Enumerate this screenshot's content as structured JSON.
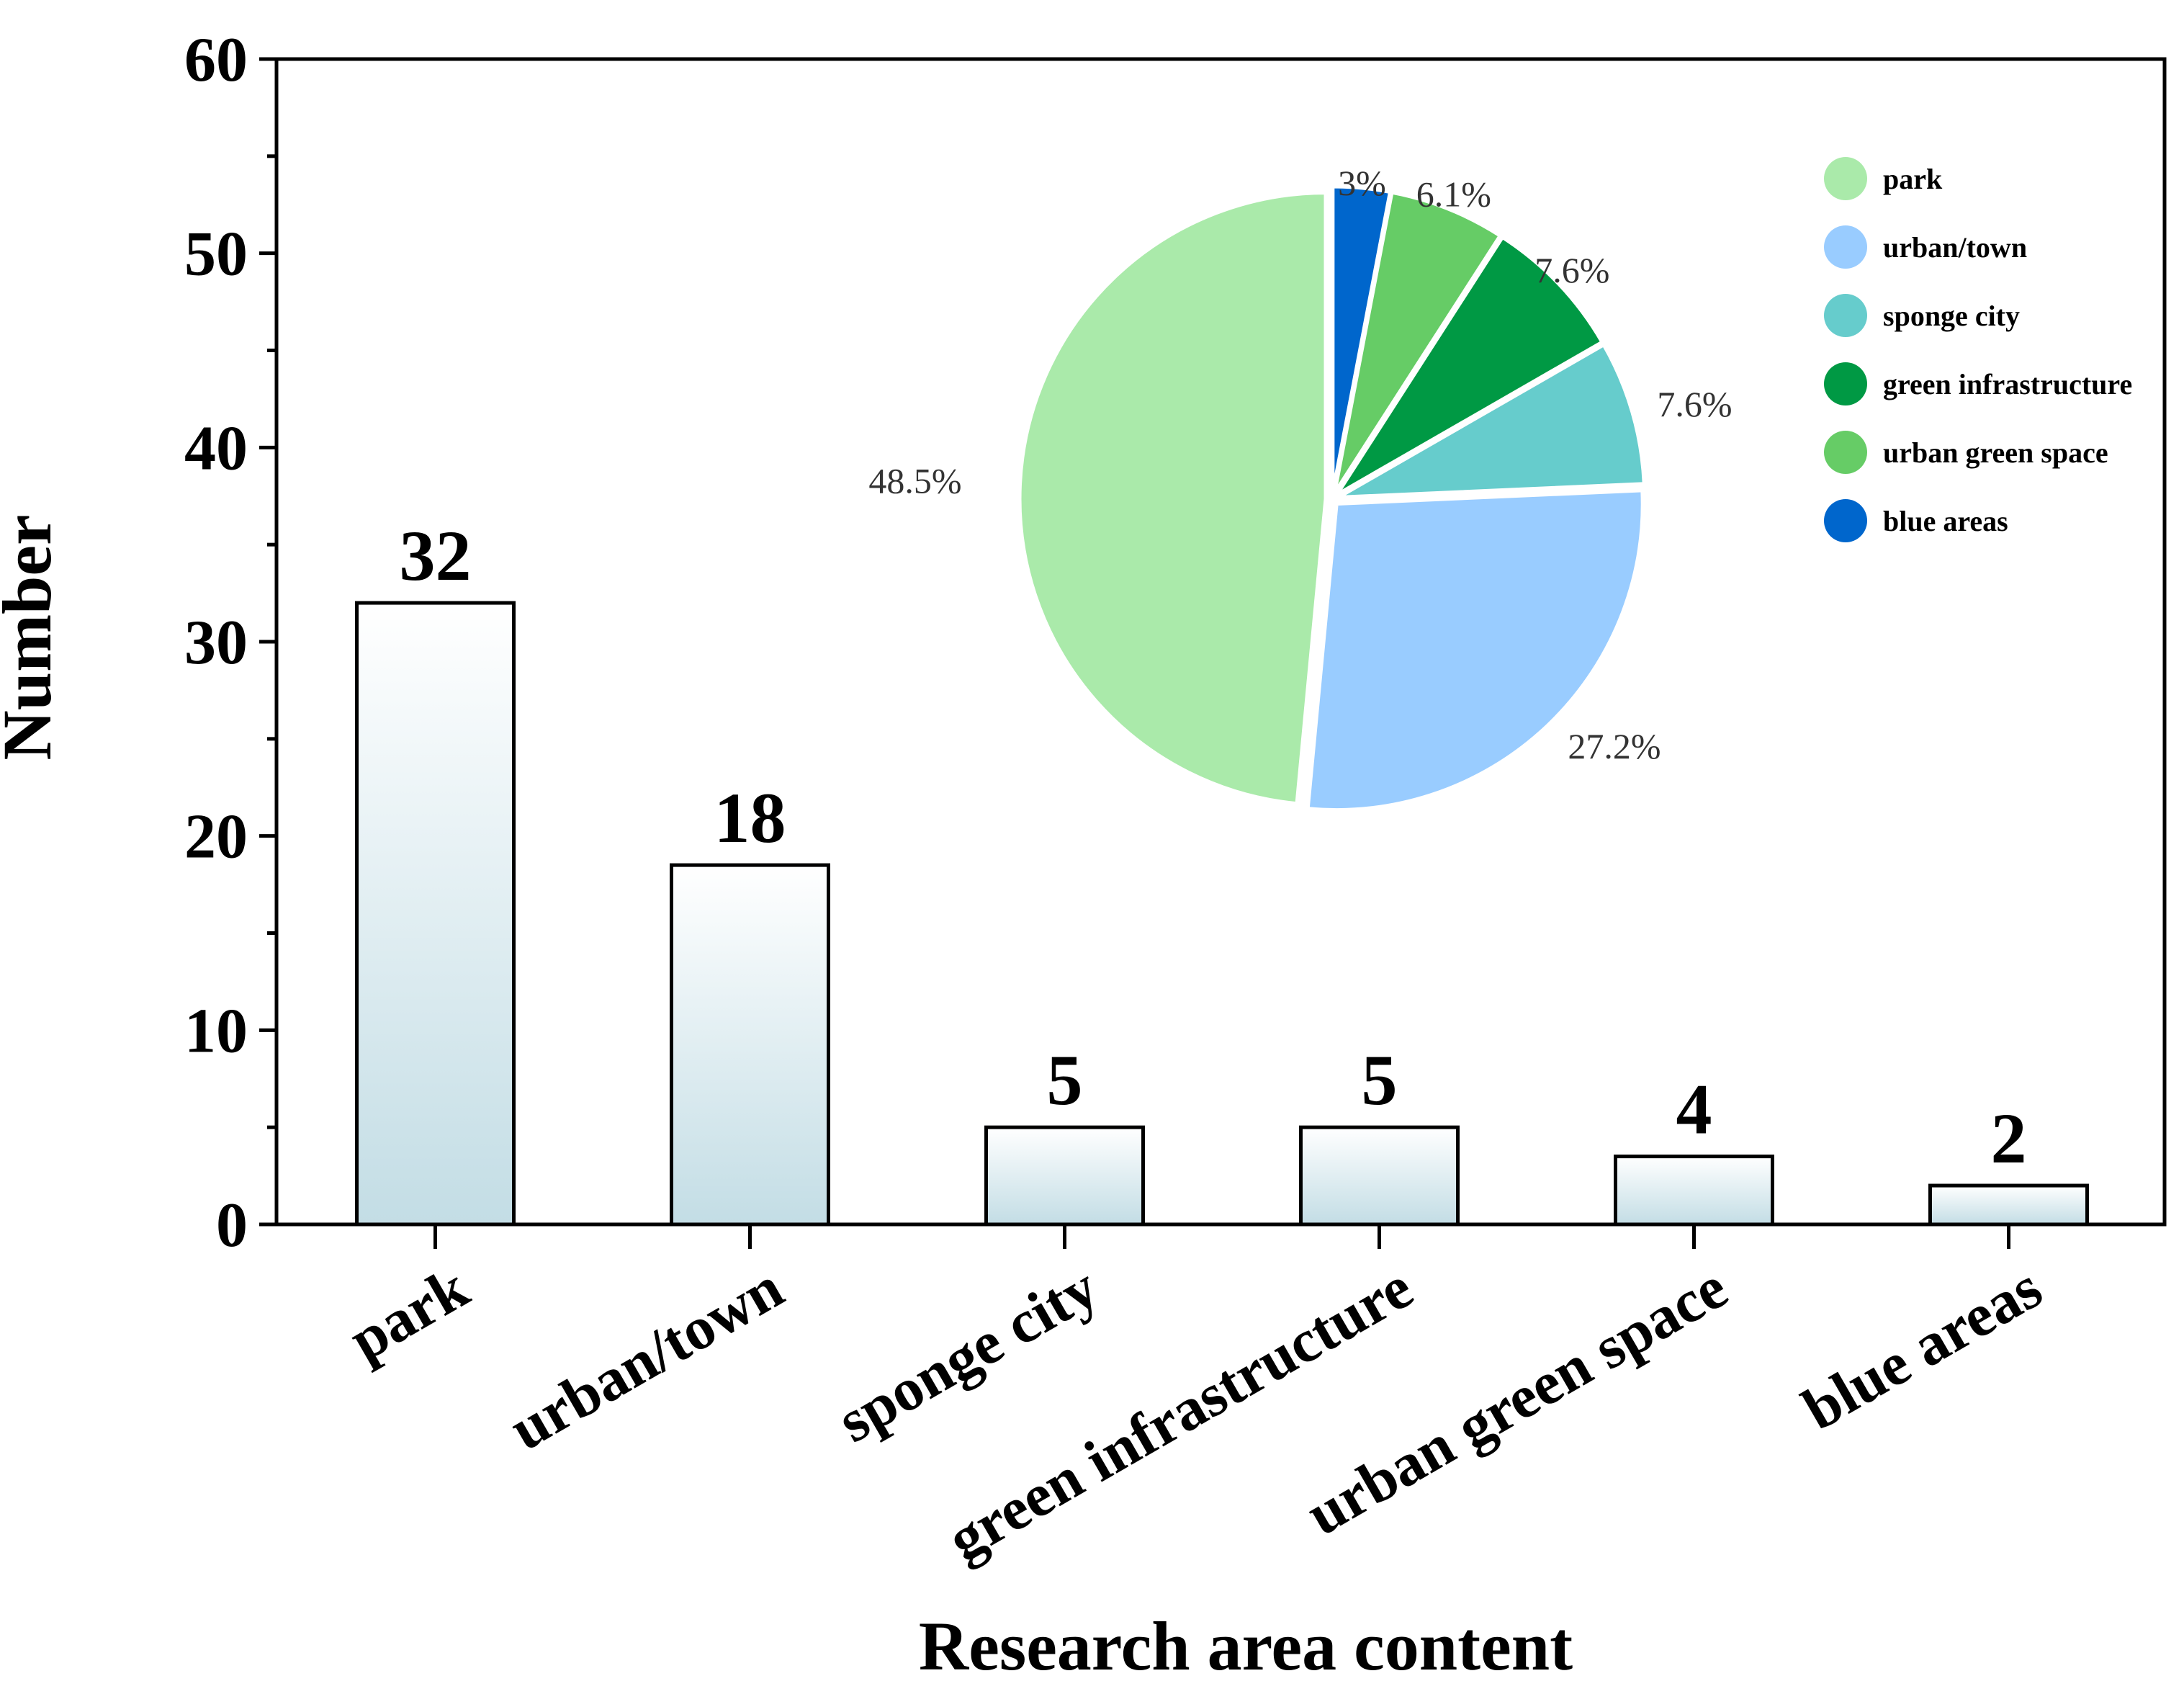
{
  "chart_data": [
    {
      "type": "bar",
      "xlabel": "Research area content",
      "ylabel": "Number",
      "ylim": [
        0,
        60
      ],
      "yticks": [
        "0",
        "10",
        "20",
        "30",
        "40",
        "50",
        "60"
      ],
      "categories": [
        "park",
        "urban/town",
        "sponge city",
        "green infrastructure",
        "urban green space",
        "blue areas"
      ],
      "values": [
        32,
        18.5,
        5,
        5,
        3.5,
        2
      ],
      "data_labels": [
        "32",
        "18",
        "5",
        "5",
        "4",
        "2"
      ],
      "bar_gradient": {
        "top": "#ffffff",
        "bottom": "#c3dde5"
      },
      "grid": false
    },
    {
      "type": "pie",
      "categories": [
        "blue areas",
        "urban green space",
        "green infrastructure",
        "sponge city",
        "urban/town",
        "park"
      ],
      "values": [
        3.0,
        6.1,
        7.6,
        7.6,
        27.2,
        48.5
      ],
      "labels": [
        "3%",
        "6.1%",
        "7.6%",
        "7.6%",
        "27.2%",
        "48.5%"
      ],
      "colors": [
        "#0066cc",
        "#66cc66",
        "#009944",
        "#66cccc",
        "#99ccff",
        "#aaeaaa"
      ],
      "legend": {
        "placement": "right",
        "items": [
          {
            "label": "park",
            "color": "#aaeaaa"
          },
          {
            "label": "urban/town",
            "color": "#99ccff"
          },
          {
            "label": "sponge city",
            "color": "#66cccc"
          },
          {
            "label": "green infrastructure",
            "color": "#009944"
          },
          {
            "label": "urban green space",
            "color": "#66cc66"
          },
          {
            "label": "blue areas",
            "color": "#0066cc"
          }
        ]
      }
    }
  ]
}
